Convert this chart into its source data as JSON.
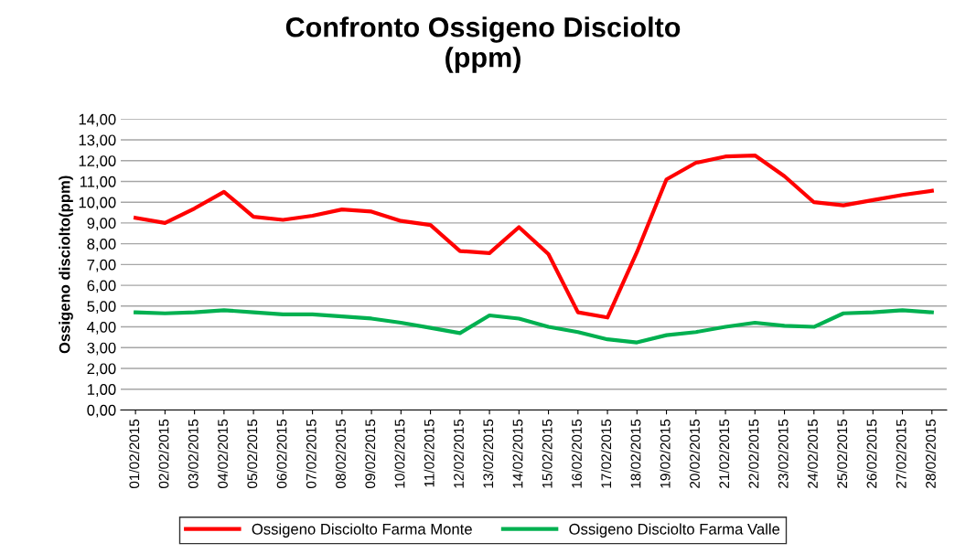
{
  "chart_data": {
    "type": "line",
    "title": "Confronto Ossigeno Disciolto\n(ppm)",
    "ylabel": "Ossigeno disciolto(ppm)",
    "categories": [
      "01/02/2015",
      "02/02/2015",
      "03/02/2015",
      "04/02/2015",
      "05/02/2015",
      "06/02/2015",
      "07/02/2015",
      "08/02/2015",
      "09/02/2015",
      "10/02/2015",
      "11/02/2015",
      "12/02/2015",
      "13/02/2015",
      "14/02/2015",
      "15/02/2015",
      "16/02/2015",
      "17/02/2015",
      "18/02/2015",
      "19/02/2015",
      "20/02/2015",
      "21/02/2015",
      "22/02/2015",
      "23/02/2015",
      "24/02/2015",
      "25/02/2015",
      "26/02/2015",
      "27/02/2015",
      "28/02/2015"
    ],
    "series": [
      {
        "name": "Ossigeno Disciolto Farma Monte",
        "color": "#ff0000",
        "values": [
          9.25,
          9.0,
          9.7,
          10.5,
          9.3,
          9.15,
          9.35,
          9.65,
          9.55,
          9.1,
          8.9,
          7.65,
          7.55,
          8.8,
          7.5,
          4.7,
          4.45,
          7.6,
          11.1,
          11.9,
          12.2,
          12.25,
          11.25,
          10.0,
          9.85,
          10.1,
          10.35,
          10.55
        ]
      },
      {
        "name": "Ossigeno Disciolto Farma Valle",
        "color": "#00b050",
        "values": [
          4.7,
          4.65,
          4.7,
          4.8,
          4.7,
          4.6,
          4.6,
          4.5,
          4.4,
          4.2,
          3.95,
          3.7,
          4.55,
          4.4,
          4.0,
          3.75,
          3.4,
          3.25,
          3.6,
          3.75,
          4.0,
          4.2,
          4.05,
          4.0,
          4.65,
          4.7,
          4.8,
          4.7
        ]
      }
    ],
    "ylim": [
      0,
      14
    ],
    "yticks": [
      {
        "value": 0,
        "label": "0,00"
      },
      {
        "value": 1,
        "label": "1,00"
      },
      {
        "value": 2,
        "label": "2,00"
      },
      {
        "value": 3,
        "label": "3,00"
      },
      {
        "value": 4,
        "label": "4,00"
      },
      {
        "value": 5,
        "label": "5,00"
      },
      {
        "value": 6,
        "label": "6,00"
      },
      {
        "value": 7,
        "label": "7,00"
      },
      {
        "value": 8,
        "label": "8,00"
      },
      {
        "value": 9,
        "label": "9,00"
      },
      {
        "value": 10,
        "label": "10,00"
      },
      {
        "value": 11,
        "label": "11,00"
      },
      {
        "value": 12,
        "label": "12,00"
      },
      {
        "value": 13,
        "label": "13,00"
      },
      {
        "value": 14,
        "label": "14,00"
      }
    ],
    "grid": "y",
    "legend": "bottom",
    "marker": "none",
    "line_style": "solid"
  }
}
